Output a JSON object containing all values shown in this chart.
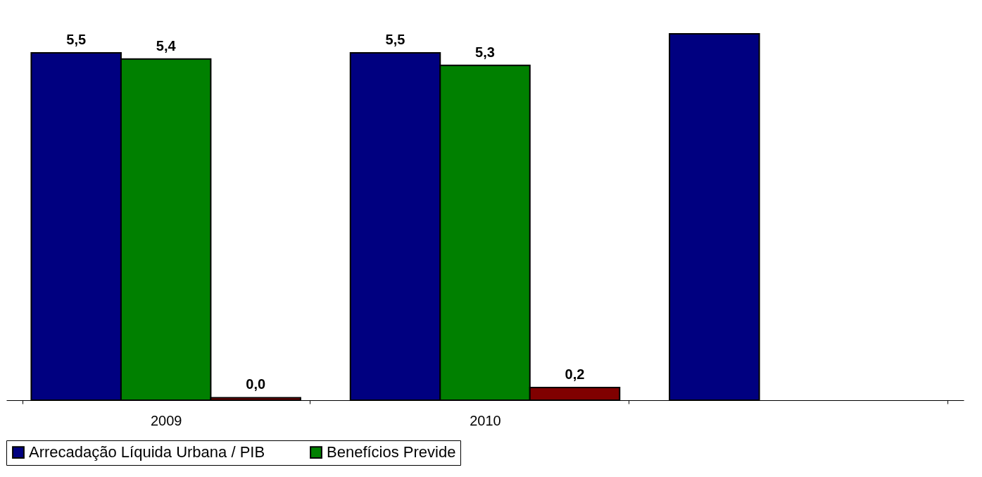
{
  "chart_data": {
    "type": "bar",
    "categories": [
      "2009",
      "2010",
      null
    ],
    "series": [
      {
        "name": "Arrecadação Líquida Urbana / PIB",
        "color": "#000080",
        "values": [
          5.5,
          5.5,
          5.8
        ],
        "value_labels": [
          "5,5",
          "5,5",
          null
        ]
      },
      {
        "name": "Benefícios Previde",
        "color": "#008000",
        "values": [
          5.4,
          5.3,
          null
        ],
        "value_labels": [
          "5,4",
          "5,3",
          null
        ]
      },
      {
        "color": "#800000",
        "values": [
          0.04,
          0.2,
          null
        ],
        "value_labels": [
          "0,0",
          "0,2",
          null
        ]
      }
    ],
    "legend": "bottom",
    "grid": false
  }
}
